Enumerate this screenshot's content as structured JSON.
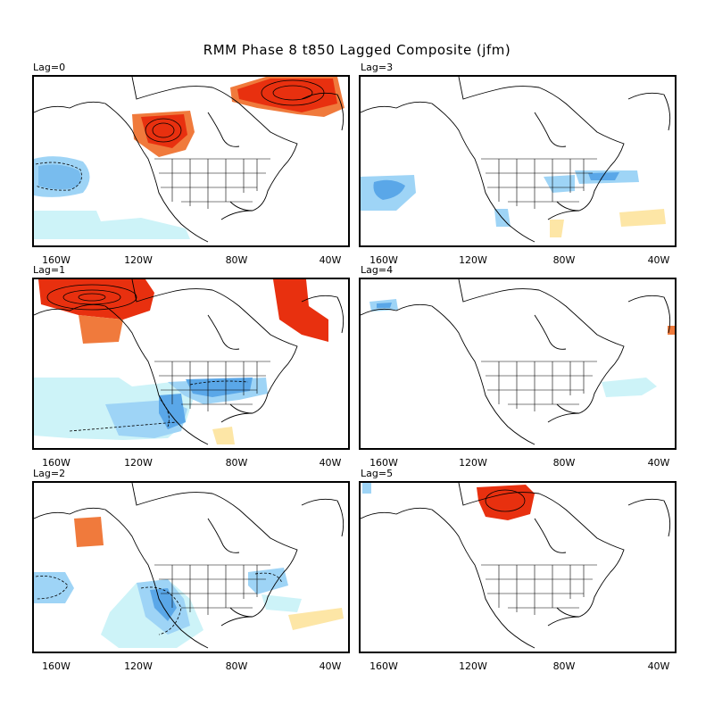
{
  "title": "RMM Phase 8 t850 Lagged Composite (jfm)",
  "x_ticks": [
    "160W",
    "120W",
    "80W",
    "40W"
  ],
  "colors": {
    "warm_strong": "#e8300f",
    "warm_mid": "#f07a3c",
    "warm_light": "#fde6a6",
    "cool_light": "#cdf3f8",
    "cool_mid": "#9ed4f6",
    "cool_strong": "#5aa7e8",
    "coast": "#000000"
  },
  "panels": [
    {
      "lag_label": "Lag=0"
    },
    {
      "lag_label": "Lag=3"
    },
    {
      "lag_label": "Lag=1"
    },
    {
      "lag_label": "Lag=4"
    },
    {
      "lag_label": "Lag=2"
    },
    {
      "lag_label": "Lag=5"
    }
  ]
}
